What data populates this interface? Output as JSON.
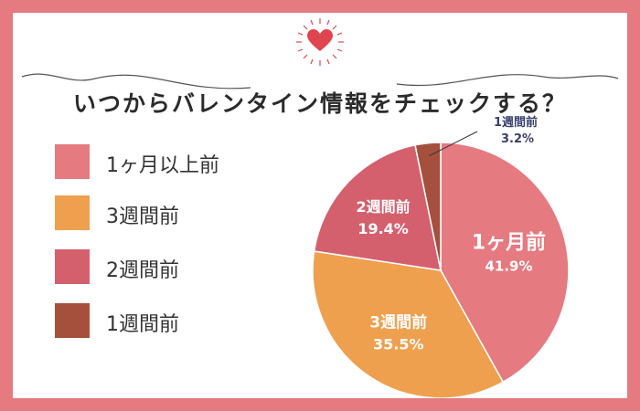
{
  "title": "いつからバレンタイン情報をチェックする？",
  "colors": {
    "border": "#e57a80",
    "heart": "#e0454f"
  },
  "chart_data": {
    "type": "pie",
    "start": "12 o'clock, clockwise",
    "slices": [
      {
        "label": "1ヶ月以上前",
        "short_label": "1ヶ月前",
        "value": 41.9,
        "value_text": "41.9%",
        "color": "#e57a80"
      },
      {
        "label": "3週間前",
        "short_label": "3週間前",
        "value": 35.5,
        "value_text": "35.5%",
        "color": "#eea04f"
      },
      {
        "label": "2週間前",
        "short_label": "2週間前",
        "value": 19.4,
        "value_text": "19.4%",
        "color": "#d4606e"
      },
      {
        "label": "1週間前",
        "short_label": "1週間前",
        "value": 3.2,
        "value_text": "3.2%",
        "color": "#a5503c"
      }
    ]
  }
}
